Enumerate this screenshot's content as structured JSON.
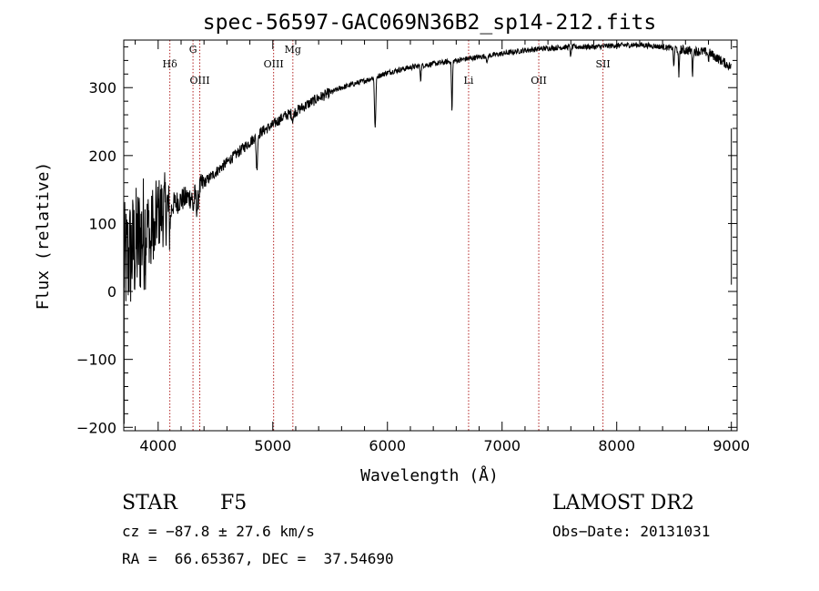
{
  "chart_data": {
    "type": "line",
    "title": "spec-56597-GAC069N36B2_sp14-212.fits",
    "xlabel": "Wavelength (Å)",
    "ylabel": "Flux (relative)",
    "xlim": [
      3700,
      9050
    ],
    "ylim": [
      -205,
      370
    ],
    "xticks": [
      4000,
      5000,
      6000,
      7000,
      8000,
      9000
    ],
    "yticks": [
      -200,
      -100,
      0,
      100,
      200,
      300
    ],
    "xtick_labels": [
      "4000",
      "5000",
      "6000",
      "7000",
      "8000",
      "9000"
    ],
    "ytick_labels": [
      "−200",
      "−100",
      "0",
      "100",
      "200",
      "300"
    ],
    "grid": false,
    "line_color": "#000000",
    "marker_color": "#b22222",
    "continuum": {
      "x": [
        3700,
        3800,
        3900,
        4000,
        4100,
        4200,
        4300,
        4400,
        4500,
        4600,
        4700,
        4800,
        4900,
        5000,
        5100,
        5200,
        5400,
        5600,
        5800,
        6000,
        6200,
        6400,
        6600,
        6800,
        7000,
        7200,
        7400,
        7600,
        7800,
        8000,
        8200,
        8400,
        8600,
        8800,
        9000
      ],
      "y": [
        40,
        65,
        95,
        115,
        125,
        135,
        140,
        160,
        175,
        190,
        205,
        220,
        235,
        245,
        258,
        265,
        285,
        300,
        310,
        322,
        330,
        335,
        340,
        345,
        350,
        355,
        358,
        360,
        360,
        362,
        363,
        360,
        355,
        352,
        330
      ]
    },
    "absorption_features": [
      {
        "x": 3934,
        "depth": 45,
        "width": 8
      },
      {
        "x": 3969,
        "depth": 40,
        "width": 8
      },
      {
        "x": 4102,
        "depth": 25,
        "width": 12
      },
      {
        "x": 4307,
        "depth": 20,
        "width": 8
      },
      {
        "x": 4341,
        "depth": 25,
        "width": 12
      },
      {
        "x": 4861,
        "depth": 50,
        "width": 8
      },
      {
        "x": 5175,
        "depth": 10,
        "width": 10
      },
      {
        "x": 5893,
        "depth": 75,
        "width": 8
      },
      {
        "x": 6290,
        "depth": 20,
        "width": 6
      },
      {
        "x": 6563,
        "depth": 75,
        "width": 6
      },
      {
        "x": 6870,
        "depth": 12,
        "width": 6
      },
      {
        "x": 7600,
        "depth": 15,
        "width": 6
      },
      {
        "x": 8498,
        "depth": 30,
        "width": 5
      },
      {
        "x": 8542,
        "depth": 45,
        "width": 5
      },
      {
        "x": 8662,
        "depth": 35,
        "width": 5
      },
      {
        "x": 8800,
        "depth": 10,
        "width": 6
      }
    ],
    "lines": [
      {
        "label": "Hδ",
        "x": 4102,
        "label_row": 1
      },
      {
        "label": "G",
        "x": 4304,
        "label_row": 0
      },
      {
        "label": "OIII",
        "x": 4363,
        "label_row": 2
      },
      {
        "label": "OIII",
        "x": 5007,
        "label_row": 1
      },
      {
        "label": "Mg",
        "x": 5175,
        "label_row": 0
      },
      {
        "label": "Li",
        "x": 6708,
        "label_row": 2
      },
      {
        "label": "OII",
        "x": 7320,
        "label_row": 2
      },
      {
        "label": "SII",
        "x": 7880,
        "label_row": 1
      }
    ]
  },
  "info": {
    "object_class": "STAR",
    "subclass": "F5",
    "survey": "LAMOST DR2",
    "velocity": "cz = −87.8 ± 27.6 km/s",
    "obs_date": "Obs−Date: 20131031",
    "coords": "RA =  66.65367, DEC =  37.54690"
  }
}
